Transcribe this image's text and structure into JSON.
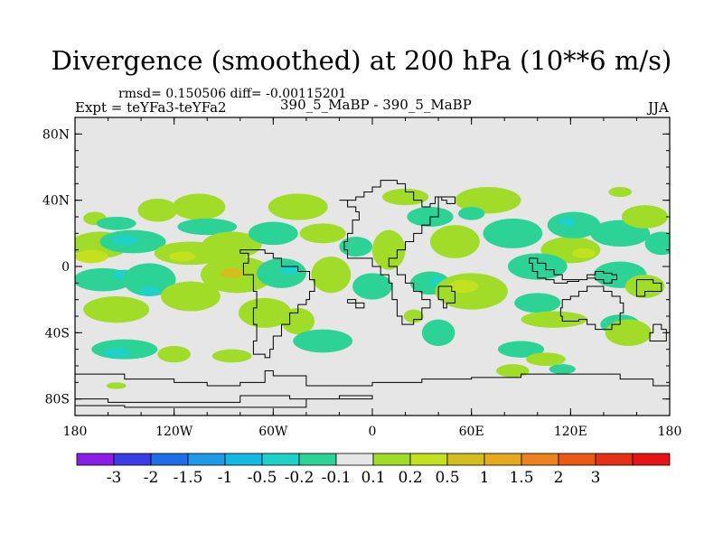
{
  "chart_data": {
    "type": "heatmap",
    "title": "Divergence (smoothed) at 200 hPa (10**6 m/s)",
    "stats_label": "rmsd= 0.150506 diff= -0.00115201",
    "experiment_label": "Expt = teYFa3-teYFa2",
    "subtitle": "390_5_MaBP - 390_5_MaBP",
    "season": "JJA",
    "xlim": [
      -180,
      180
    ],
    "ylim": [
      -90,
      90
    ],
    "x_ticks": [
      {
        "value": -180,
        "label": "180"
      },
      {
        "value": -120,
        "label": "120W"
      },
      {
        "value": -60,
        "label": "60W"
      },
      {
        "value": 0,
        "label": "0"
      },
      {
        "value": 60,
        "label": "60E"
      },
      {
        "value": 120,
        "label": "120E"
      },
      {
        "value": 180,
        "label": "180"
      }
    ],
    "y_ticks": [
      {
        "value": 80,
        "label": "80N"
      },
      {
        "value": 40,
        "label": "40N"
      },
      {
        "value": 0,
        "label": "0"
      },
      {
        "value": -40,
        "label": "40S"
      },
      {
        "value": -80,
        "label": "80S"
      }
    ],
    "colorbar": {
      "colors": [
        "#8b1ee6",
        "#3c3ce6",
        "#1e6ee6",
        "#1e9be6",
        "#14b9e1",
        "#1ed2c8",
        "#2dd296",
        "#e6e6e6",
        "#a0dc28",
        "#c3e11e",
        "#d2be1e",
        "#e6aa1e",
        "#eb821e",
        "#eb5a14",
        "#e63214",
        "#e61414"
      ],
      "labels": [
        "-3",
        "-2",
        "-1.5",
        "-1",
        "-0.5",
        "-0.2",
        "-0.1",
        "0.1",
        "0.2",
        "0.5",
        "1",
        "1.5",
        "2",
        "3"
      ]
    },
    "blobs": [
      {
        "lon": -165,
        "lat": 13,
        "rx": 18,
        "ry": 8,
        "level": 1
      },
      {
        "lon": -170,
        "lat": 6,
        "rx": 10,
        "ry": 4,
        "level": 2
      },
      {
        "lon": -168,
        "lat": 29,
        "rx": 7,
        "ry": 4,
        "level": 1
      },
      {
        "lon": -155,
        "lat": 26,
        "rx": 12,
        "ry": 4,
        "level": -1
      },
      {
        "lon": -130,
        "lat": 34,
        "rx": 12,
        "ry": 7,
        "level": 1
      },
      {
        "lon": -105,
        "lat": 36,
        "rx": 16,
        "ry": 8,
        "level": 1
      },
      {
        "lon": -100,
        "lat": 24,
        "rx": 18,
        "ry": 5,
        "level": -1
      },
      {
        "lon": -145,
        "lat": 15,
        "rx": 20,
        "ry": 7,
        "level": -1
      },
      {
        "lon": -150,
        "lat": 16,
        "rx": 8,
        "ry": 3,
        "level": -2
      },
      {
        "lon": -110,
        "lat": 8,
        "rx": 22,
        "ry": 7,
        "level": 1
      },
      {
        "lon": -115,
        "lat": 6,
        "rx": 8,
        "ry": 3,
        "level": 2
      },
      {
        "lon": -85,
        "lat": 13,
        "rx": 18,
        "ry": 8,
        "level": 1
      },
      {
        "lon": -60,
        "lat": 20,
        "rx": 15,
        "ry": 7,
        "level": -1
      },
      {
        "lon": -45,
        "lat": 36,
        "rx": 18,
        "ry": 8,
        "level": 1
      },
      {
        "lon": -30,
        "lat": 20,
        "rx": 14,
        "ry": 6,
        "level": 1
      },
      {
        "lon": -10,
        "lat": 12,
        "rx": 10,
        "ry": 6,
        "level": -1
      },
      {
        "lon": -163,
        "lat": -8,
        "rx": 18,
        "ry": 7,
        "level": -1
      },
      {
        "lon": -150,
        "lat": -5,
        "rx": 7,
        "ry": 3,
        "level": -2
      },
      {
        "lon": -155,
        "lat": -26,
        "rx": 20,
        "ry": 8,
        "level": 1
      },
      {
        "lon": -135,
        "lat": -8,
        "rx": 16,
        "ry": 10,
        "level": -1
      },
      {
        "lon": -135,
        "lat": -15,
        "rx": 6,
        "ry": 3,
        "level": -2
      },
      {
        "lon": -110,
        "lat": -18,
        "rx": 18,
        "ry": 9,
        "level": 1
      },
      {
        "lon": -82,
        "lat": -5,
        "rx": 22,
        "ry": 11,
        "level": 1
      },
      {
        "lon": -85,
        "lat": -4,
        "rx": 7,
        "ry": 3,
        "level": 3
      },
      {
        "lon": -55,
        "lat": -4,
        "rx": 15,
        "ry": 9,
        "level": -1
      },
      {
        "lon": -50,
        "lat": -2,
        "rx": 6,
        "ry": 3,
        "level": -2
      },
      {
        "lon": -25,
        "lat": -5,
        "rx": 12,
        "ry": 11,
        "level": 1
      },
      {
        "lon": -65,
        "lat": -28,
        "rx": 16,
        "ry": 9,
        "level": 1
      },
      {
        "lon": -45,
        "lat": -33,
        "rx": 10,
        "ry": 8,
        "level": 1
      },
      {
        "lon": -150,
        "lat": -50,
        "rx": 20,
        "ry": 6,
        "level": -1
      },
      {
        "lon": -155,
        "lat": -52,
        "rx": 8,
        "ry": 3,
        "level": -2
      },
      {
        "lon": -120,
        "lat": -53,
        "rx": 10,
        "ry": 5,
        "level": 1
      },
      {
        "lon": -85,
        "lat": -54,
        "rx": 12,
        "ry": 4,
        "level": 1
      },
      {
        "lon": -30,
        "lat": -45,
        "rx": 18,
        "ry": 7,
        "level": -1
      },
      {
        "lon": -155,
        "lat": -72,
        "rx": 6,
        "ry": 2,
        "level": 1
      },
      {
        "lon": 10,
        "lat": 10,
        "rx": 10,
        "ry": 12,
        "level": 1
      },
      {
        "lon": 0,
        "lat": -12,
        "rx": 12,
        "ry": 8,
        "level": -1
      },
      {
        "lon": 35,
        "lat": -10,
        "rx": 12,
        "ry": 7,
        "level": -1
      },
      {
        "lon": 40,
        "lat": -9,
        "rx": 5,
        "ry": 3,
        "level": -2
      },
      {
        "lon": 60,
        "lat": -15,
        "rx": 22,
        "ry": 11,
        "level": 1
      },
      {
        "lon": 55,
        "lat": -12,
        "rx": 9,
        "ry": 4,
        "level": 2
      },
      {
        "lon": 40,
        "lat": -40,
        "rx": 10,
        "ry": 8,
        "level": -1
      },
      {
        "lon": 50,
        "lat": 15,
        "rx": 15,
        "ry": 10,
        "level": 1
      },
      {
        "lon": 35,
        "lat": 30,
        "rx": 14,
        "ry": 6,
        "level": -1
      },
      {
        "lon": 20,
        "lat": 42,
        "rx": 14,
        "ry": 5,
        "level": 1
      },
      {
        "lon": 70,
        "lat": 40,
        "rx": 20,
        "ry": 8,
        "level": 1
      },
      {
        "lon": 85,
        "lat": 20,
        "rx": 18,
        "ry": 9,
        "level": -1
      },
      {
        "lon": 60,
        "lat": 32,
        "rx": 8,
        "ry": 4,
        "level": -1
      },
      {
        "lon": 120,
        "lat": 10,
        "rx": 18,
        "ry": 8,
        "level": 1
      },
      {
        "lon": 128,
        "lat": 8,
        "rx": 7,
        "ry": 3,
        "level": 2
      },
      {
        "lon": 100,
        "lat": 0,
        "rx": 18,
        "ry": 8,
        "level": -1
      },
      {
        "lon": 122,
        "lat": 25,
        "rx": 16,
        "ry": 8,
        "level": -1
      },
      {
        "lon": 118,
        "lat": 27,
        "rx": 5,
        "ry": 3,
        "level": -2
      },
      {
        "lon": 150,
        "lat": 20,
        "rx": 18,
        "ry": 8,
        "level": -1
      },
      {
        "lon": 165,
        "lat": 30,
        "rx": 14,
        "ry": 7,
        "level": 1
      },
      {
        "lon": 150,
        "lat": -5,
        "rx": 16,
        "ry": 8,
        "level": -1
      },
      {
        "lon": 165,
        "lat": -12,
        "rx": 12,
        "ry": 7,
        "level": 1
      },
      {
        "lon": 175,
        "lat": 14,
        "rx": 10,
        "ry": 7,
        "level": -1
      },
      {
        "lon": 100,
        "lat": -22,
        "rx": 14,
        "ry": 6,
        "level": -1
      },
      {
        "lon": 110,
        "lat": -32,
        "rx": 20,
        "ry": 5,
        "level": 1
      },
      {
        "lon": 150,
        "lat": -35,
        "rx": 12,
        "ry": 6,
        "level": -1
      },
      {
        "lon": 155,
        "lat": -40,
        "rx": 14,
        "ry": 8,
        "level": 1
      },
      {
        "lon": 90,
        "lat": -50,
        "rx": 14,
        "ry": 5,
        "level": -1
      },
      {
        "lon": 105,
        "lat": -56,
        "rx": 12,
        "ry": 4,
        "level": 1
      },
      {
        "lon": 85,
        "lat": -63,
        "rx": 10,
        "ry": 4,
        "level": 1
      },
      {
        "lon": 115,
        "lat": -62,
        "rx": 8,
        "ry": 3,
        "level": -1
      },
      {
        "lon": 150,
        "lat": 45,
        "rx": 7,
        "ry": 3,
        "level": 1
      },
      {
        "lon": 25,
        "lat": -30,
        "rx": 6,
        "ry": 4,
        "level": 1
      }
    ],
    "coastlines": [
      [
        [
          -20,
          40
        ],
        [
          -10,
          42
        ],
        [
          -5,
          45
        ],
        [
          0,
          48
        ],
        [
          5,
          52
        ],
        [
          10,
          52
        ],
        [
          15,
          50
        ],
        [
          20,
          45
        ],
        [
          25,
          40
        ],
        [
          30,
          36
        ],
        [
          35,
          38
        ],
        [
          38,
          42
        ],
        [
          42,
          40
        ],
        [
          45,
          38
        ],
        [
          50,
          42
        ],
        [
          40,
          30
        ],
        [
          35,
          25
        ],
        [
          30,
          20
        ],
        [
          25,
          15
        ],
        [
          20,
          10
        ],
        [
          15,
          5
        ],
        [
          10,
          0
        ],
        [
          15,
          -5
        ],
        [
          20,
          -10
        ],
        [
          25,
          -15
        ],
        [
          30,
          -20
        ],
        [
          35,
          -25
        ],
        [
          30,
          -32
        ],
        [
          25,
          -35
        ],
        [
          20,
          -35
        ],
        [
          18,
          -30
        ],
        [
          15,
          -20
        ],
        [
          12,
          -10
        ],
        [
          10,
          -5
        ],
        [
          5,
          0
        ],
        [
          0,
          5
        ],
        [
          -5,
          5
        ],
        [
          -10,
          5
        ],
        [
          -15,
          10
        ],
        [
          -17,
          15
        ],
        [
          -15,
          20
        ],
        [
          -12,
          28
        ],
        [
          -8,
          33
        ],
        [
          -10,
          36
        ],
        [
          -15,
          40
        ],
        [
          -20,
          40
        ]
      ],
      [
        [
          -80,
          8
        ],
        [
          -75,
          2
        ],
        [
          -78,
          -5
        ],
        [
          -72,
          -15
        ],
        [
          -70,
          -25
        ],
        [
          -72,
          -35
        ],
        [
          -70,
          -45
        ],
        [
          -72,
          -53
        ],
        [
          -65,
          -55
        ],
        [
          -62,
          -50
        ],
        [
          -60,
          -42
        ],
        [
          -55,
          -35
        ],
        [
          -50,
          -28
        ],
        [
          -45,
          -23
        ],
        [
          -40,
          -20
        ],
        [
          -38,
          -15
        ],
        [
          -35,
          -8
        ],
        [
          -38,
          -3
        ],
        [
          -45,
          0
        ],
        [
          -50,
          0
        ],
        [
          -55,
          5
        ],
        [
          -60,
          8
        ],
        [
          -65,
          10
        ],
        [
          -72,
          10
        ],
        [
          -80,
          8
        ]
      ],
      [
        [
          115,
          -20
        ],
        [
          120,
          -18
        ],
        [
          125,
          -15
        ],
        [
          130,
          -12
        ],
        [
          135,
          -12
        ],
        [
          140,
          -15
        ],
        [
          145,
          -18
        ],
        [
          150,
          -22
        ],
        [
          152,
          -28
        ],
        [
          150,
          -35
        ],
        [
          145,
          -38
        ],
        [
          140,
          -38
        ],
        [
          135,
          -35
        ],
        [
          130,
          -32
        ],
        [
          125,
          -33
        ],
        [
          118,
          -33
        ],
        [
          115,
          -30
        ],
        [
          114,
          -25
        ],
        [
          115,
          -20
        ]
      ],
      [
        [
          95,
          5
        ],
        [
          100,
          2
        ],
        [
          105,
          -2
        ],
        [
          110,
          -5
        ],
        [
          115,
          -8
        ],
        [
          120,
          -8
        ],
        [
          125,
          -8
        ],
        [
          130,
          -5
        ],
        [
          135,
          -3
        ],
        [
          140,
          -4
        ],
        [
          145,
          -5
        ],
        [
          148,
          -8
        ],
        [
          145,
          -10
        ],
        [
          140,
          -8
        ],
        [
          135,
          -7
        ],
        [
          130,
          -8
        ],
        [
          125,
          -9
        ],
        [
          118,
          -10
        ],
        [
          110,
          -8
        ],
        [
          105,
          -7
        ],
        [
          100,
          -3
        ],
        [
          97,
          2
        ],
        [
          95,
          5
        ]
      ],
      [
        [
          -180,
          -65
        ],
        [
          -150,
          -68
        ],
        [
          -120,
          -70
        ],
        [
          -100,
          -72
        ],
        [
          -80,
          -70
        ],
        [
          -65,
          -63
        ],
        [
          -60,
          -66
        ],
        [
          -40,
          -72
        ],
        [
          -20,
          -72
        ],
        [
          0,
          -70
        ],
        [
          30,
          -68
        ],
        [
          60,
          -67
        ],
        [
          90,
          -65
        ],
        [
          120,
          -65
        ],
        [
          150,
          -68
        ],
        [
          170,
          -72
        ],
        [
          180,
          -72
        ]
      ],
      [
        [
          -180,
          -80
        ],
        [
          -160,
          -82
        ],
        [
          -120,
          -82
        ],
        [
          -80,
          -78
        ],
        [
          -50,
          -80
        ],
        [
          -20,
          -78
        ],
        [
          0,
          -80
        ],
        [
          -40,
          -85
        ],
        [
          -100,
          -85
        ],
        [
          -150,
          -84
        ],
        [
          -180,
          -84
        ]
      ],
      [
        [
          40,
          -12
        ],
        [
          48,
          -15
        ],
        [
          50,
          -22
        ],
        [
          45,
          -25
        ],
        [
          43,
          -20
        ],
        [
          40,
          -12
        ]
      ],
      [
        [
          170,
          -35
        ],
        [
          175,
          -38
        ],
        [
          178,
          -45
        ],
        [
          172,
          -45
        ],
        [
          168,
          -40
        ],
        [
          170,
          -35
        ]
      ],
      [
        [
          160,
          -8
        ],
        [
          170,
          -10
        ],
        [
          175,
          -15
        ],
        [
          165,
          -18
        ],
        [
          160,
          -12
        ],
        [
          160,
          -8
        ]
      ],
      [
        [
          -15,
          -22
        ],
        [
          -10,
          -25
        ],
        [
          -5,
          -22
        ],
        [
          -10,
          -20
        ],
        [
          -15,
          -22
        ]
      ]
    ]
  }
}
